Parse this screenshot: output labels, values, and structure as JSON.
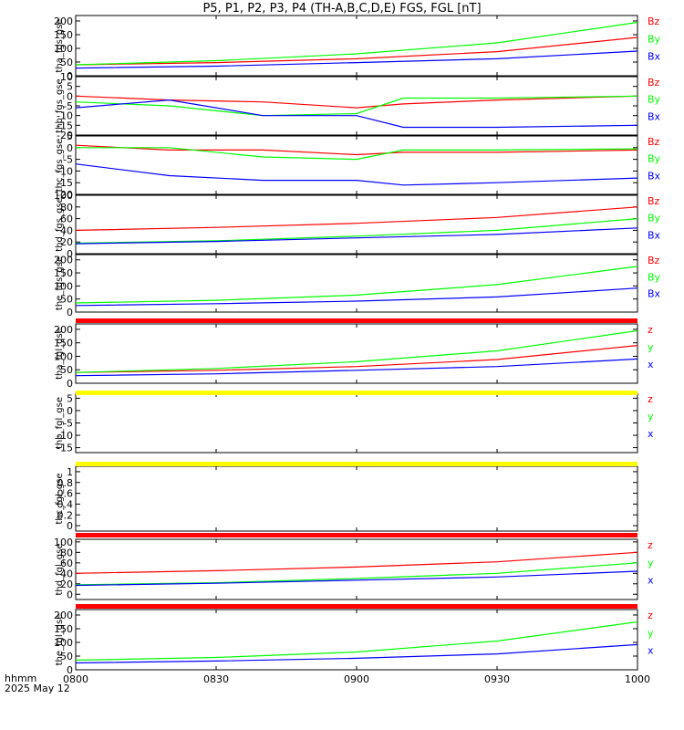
{
  "title": "P5, P1, P2, P3, P4 (TH-A,B,C,D,E) FGS, FGL [nT]",
  "footer": {
    "time_label": "hhmm",
    "date_label": "2025 May 12"
  },
  "chart_data": [
    {
      "type": "line",
      "ylabel": "tha_fgs_gse",
      "ylim": [
        0,
        220
      ],
      "yticks": [
        0,
        50,
        100,
        150,
        200
      ],
      "x_ticks": [
        "0800",
        "0830",
        "0900",
        "0930",
        "1000"
      ],
      "series": [
        {
          "name": "Bz",
          "color": "#ff0000",
          "x": [
            0,
            30,
            60,
            90,
            120
          ],
          "values": [
            40,
            48,
            62,
            88,
            140
          ]
        },
        {
          "name": "By",
          "color": "#00ff00",
          "x": [
            0,
            30,
            60,
            90,
            120
          ],
          "values": [
            40,
            55,
            80,
            120,
            195
          ]
        },
        {
          "name": "Bx",
          "color": "#0000ff",
          "x": [
            0,
            30,
            60,
            90,
            120
          ],
          "values": [
            28,
            35,
            48,
            62,
            90
          ]
        }
      ]
    },
    {
      "type": "line",
      "ylabel": "thb_fgs_gse",
      "ylim": [
        -20,
        10
      ],
      "yticks": [
        -20,
        -15,
        -10,
        -5,
        0,
        5,
        10
      ],
      "x_ticks": [
        "0800",
        "0830",
        "0900",
        "0930",
        "1000"
      ],
      "series": [
        {
          "name": "Bz",
          "color": "#ff0000",
          "x": [
            0,
            20,
            40,
            60,
            70,
            90,
            120
          ],
          "values": [
            0,
            -2,
            -3,
            -6,
            -4,
            -2,
            0
          ]
        },
        {
          "name": "By",
          "color": "#00ff00",
          "x": [
            0,
            20,
            40,
            60,
            70,
            90,
            120
          ],
          "values": [
            -3,
            -5,
            -10,
            -9,
            -1,
            -1,
            0
          ]
        },
        {
          "name": "Bx",
          "color": "#0000ff",
          "x": [
            0,
            20,
            40,
            60,
            70,
            90,
            120
          ],
          "values": [
            -6,
            -2,
            -10,
            -10,
            -16,
            -16,
            -15
          ]
        }
      ]
    },
    {
      "type": "line",
      "ylabel": "thc_fgs_gse",
      "ylim": [
        -20,
        5
      ],
      "yticks": [
        -20,
        -15,
        -10,
        -5,
        0,
        5
      ],
      "x_ticks": [
        "0800",
        "0830",
        "0900",
        "0930",
        "1000"
      ],
      "series": [
        {
          "name": "Bz",
          "color": "#ff0000",
          "x": [
            0,
            20,
            40,
            60,
            70,
            90,
            120
          ],
          "values": [
            1,
            -1,
            -1,
            -3,
            -2,
            -2,
            -1
          ]
        },
        {
          "name": "By",
          "color": "#00ff00",
          "x": [
            0,
            20,
            40,
            60,
            70,
            90,
            120
          ],
          "values": [
            0,
            0,
            -4,
            -5,
            -1,
            -1,
            -0.5
          ]
        },
        {
          "name": "Bx",
          "color": "#0000ff",
          "x": [
            0,
            20,
            40,
            60,
            70,
            90,
            120
          ],
          "values": [
            -7,
            -12,
            -14,
            -14,
            -16,
            -15,
            -13
          ]
        }
      ]
    },
    {
      "type": "line",
      "ylabel": "thd_fgs_gse",
      "ylim": [
        0,
        100
      ],
      "yticks": [
        0,
        20,
        40,
        60,
        80,
        100
      ],
      "x_ticks": [
        "0800",
        "0830",
        "0900",
        "0930",
        "1000"
      ],
      "series": [
        {
          "name": "Bz",
          "color": "#ff0000",
          "x": [
            0,
            30,
            60,
            90,
            120
          ],
          "values": [
            40,
            45,
            52,
            62,
            80
          ]
        },
        {
          "name": "By",
          "color": "#00ff00",
          "x": [
            0,
            30,
            60,
            90,
            120
          ],
          "values": [
            18,
            22,
            30,
            40,
            60
          ]
        },
        {
          "name": "Bx",
          "color": "#0000ff",
          "x": [
            0,
            30,
            60,
            90,
            120
          ],
          "values": [
            17,
            21,
            27,
            33,
            44
          ]
        }
      ]
    },
    {
      "type": "line",
      "ylabel": "the_fgs_gse",
      "ylim": [
        0,
        220
      ],
      "yticks": [
        0,
        50,
        100,
        150,
        200
      ],
      "x_ticks": [
        "0800",
        "0830",
        "0900",
        "0930",
        "1000"
      ],
      "series": [
        {
          "name": "Bz",
          "color": "#ff0000",
          "x": [],
          "values": []
        },
        {
          "name": "By",
          "color": "#00ff00",
          "x": [
            0,
            30,
            60,
            90,
            120
          ],
          "values": [
            35,
            45,
            65,
            105,
            175
          ]
        },
        {
          "name": "Bx",
          "color": "#0000ff",
          "x": [
            0,
            30,
            60,
            90,
            120
          ],
          "values": [
            25,
            32,
            42,
            58,
            92
          ]
        }
      ]
    },
    {
      "type": "line",
      "ylabel": "tha_fgl_gse",
      "ylim": [
        0,
        220
      ],
      "yticks": [
        0,
        50,
        100,
        150,
        200
      ],
      "x_ticks": [
        "0800",
        "0830",
        "0900",
        "0930",
        "1000"
      ],
      "series": [
        {
          "name": "z",
          "color": "#ff0000",
          "x": [
            0,
            30,
            60,
            90,
            120
          ],
          "values": [
            40,
            48,
            62,
            88,
            140
          ]
        },
        {
          "name": "y",
          "color": "#00ff00",
          "x": [
            0,
            30,
            60,
            90,
            120
          ],
          "values": [
            40,
            55,
            80,
            120,
            195
          ]
        },
        {
          "name": "x",
          "color": "#0000ff",
          "x": [
            0,
            30,
            60,
            90,
            120
          ],
          "values": [
            28,
            35,
            48,
            62,
            90
          ]
        }
      ]
    },
    {
      "type": "line",
      "ylabel": "thb_fgl_gse",
      "ylim": [
        -17,
        7
      ],
      "yticks": [
        -15,
        -10,
        -5,
        0,
        5
      ],
      "x_ticks": [
        "0800",
        "0830",
        "0900",
        "0930",
        "1000"
      ],
      "series": [
        {
          "name": "z",
          "color": "#ff0000",
          "x": [],
          "values": []
        },
        {
          "name": "y",
          "color": "#00ff00",
          "x": [],
          "values": []
        },
        {
          "name": "x",
          "color": "#0000ff",
          "x": [],
          "values": []
        }
      ]
    },
    {
      "type": "line",
      "ylabel": "thc_fgl_gse",
      "ylim": [
        -0.1,
        1.1
      ],
      "yticks": [
        0.0,
        0.2,
        0.4,
        0.6,
        0.8,
        1.0
      ],
      "x_ticks": [
        "0800",
        "0830",
        "0900",
        "0930",
        "1000"
      ],
      "series": []
    },
    {
      "type": "line",
      "ylabel": "thd_fgl_gse",
      "ylim": [
        -10,
        105
      ],
      "yticks": [
        0,
        20,
        40,
        60,
        80,
        100
      ],
      "x_ticks": [
        "0800",
        "0830",
        "0900",
        "0930",
        "1000"
      ],
      "series": [
        {
          "name": "z",
          "color": "#ff0000",
          "x": [
            0,
            30,
            60,
            90,
            120
          ],
          "values": [
            40,
            45,
            52,
            62,
            80
          ]
        },
        {
          "name": "y",
          "color": "#00ff00",
          "x": [
            0,
            30,
            60,
            90,
            120
          ],
          "values": [
            18,
            22,
            30,
            40,
            60
          ]
        },
        {
          "name": "x",
          "color": "#0000ff",
          "x": [
            0,
            30,
            60,
            90,
            120
          ],
          "values": [
            17,
            21,
            27,
            33,
            44
          ]
        }
      ]
    },
    {
      "type": "line",
      "ylabel": "the_fgl_gse",
      "ylim": [
        0,
        220
      ],
      "yticks": [
        0,
        50,
        100,
        150,
        200
      ],
      "x_ticks": [
        "0800",
        "0830",
        "0900",
        "0930",
        "1000"
      ],
      "series": [
        {
          "name": "z",
          "color": "#ff0000",
          "x": [],
          "values": []
        },
        {
          "name": "y",
          "color": "#00ff00",
          "x": [
            0,
            30,
            60,
            90,
            120
          ],
          "values": [
            35,
            45,
            65,
            105,
            175
          ]
        },
        {
          "name": "x",
          "color": "#0000ff",
          "x": [
            0,
            30,
            60,
            90,
            120
          ],
          "values": [
            25,
            32,
            42,
            58,
            92
          ]
        }
      ]
    }
  ],
  "status_bars": [
    {
      "after_panel": 4,
      "color": "#ff0000"
    },
    {
      "after_panel": 5,
      "color": "#ffff00"
    },
    {
      "after_panel": 6,
      "color": "#ffff00"
    },
    {
      "after_panel": 7,
      "color": "#ff0000"
    },
    {
      "after_panel": 8,
      "color": "#ff0000"
    }
  ]
}
